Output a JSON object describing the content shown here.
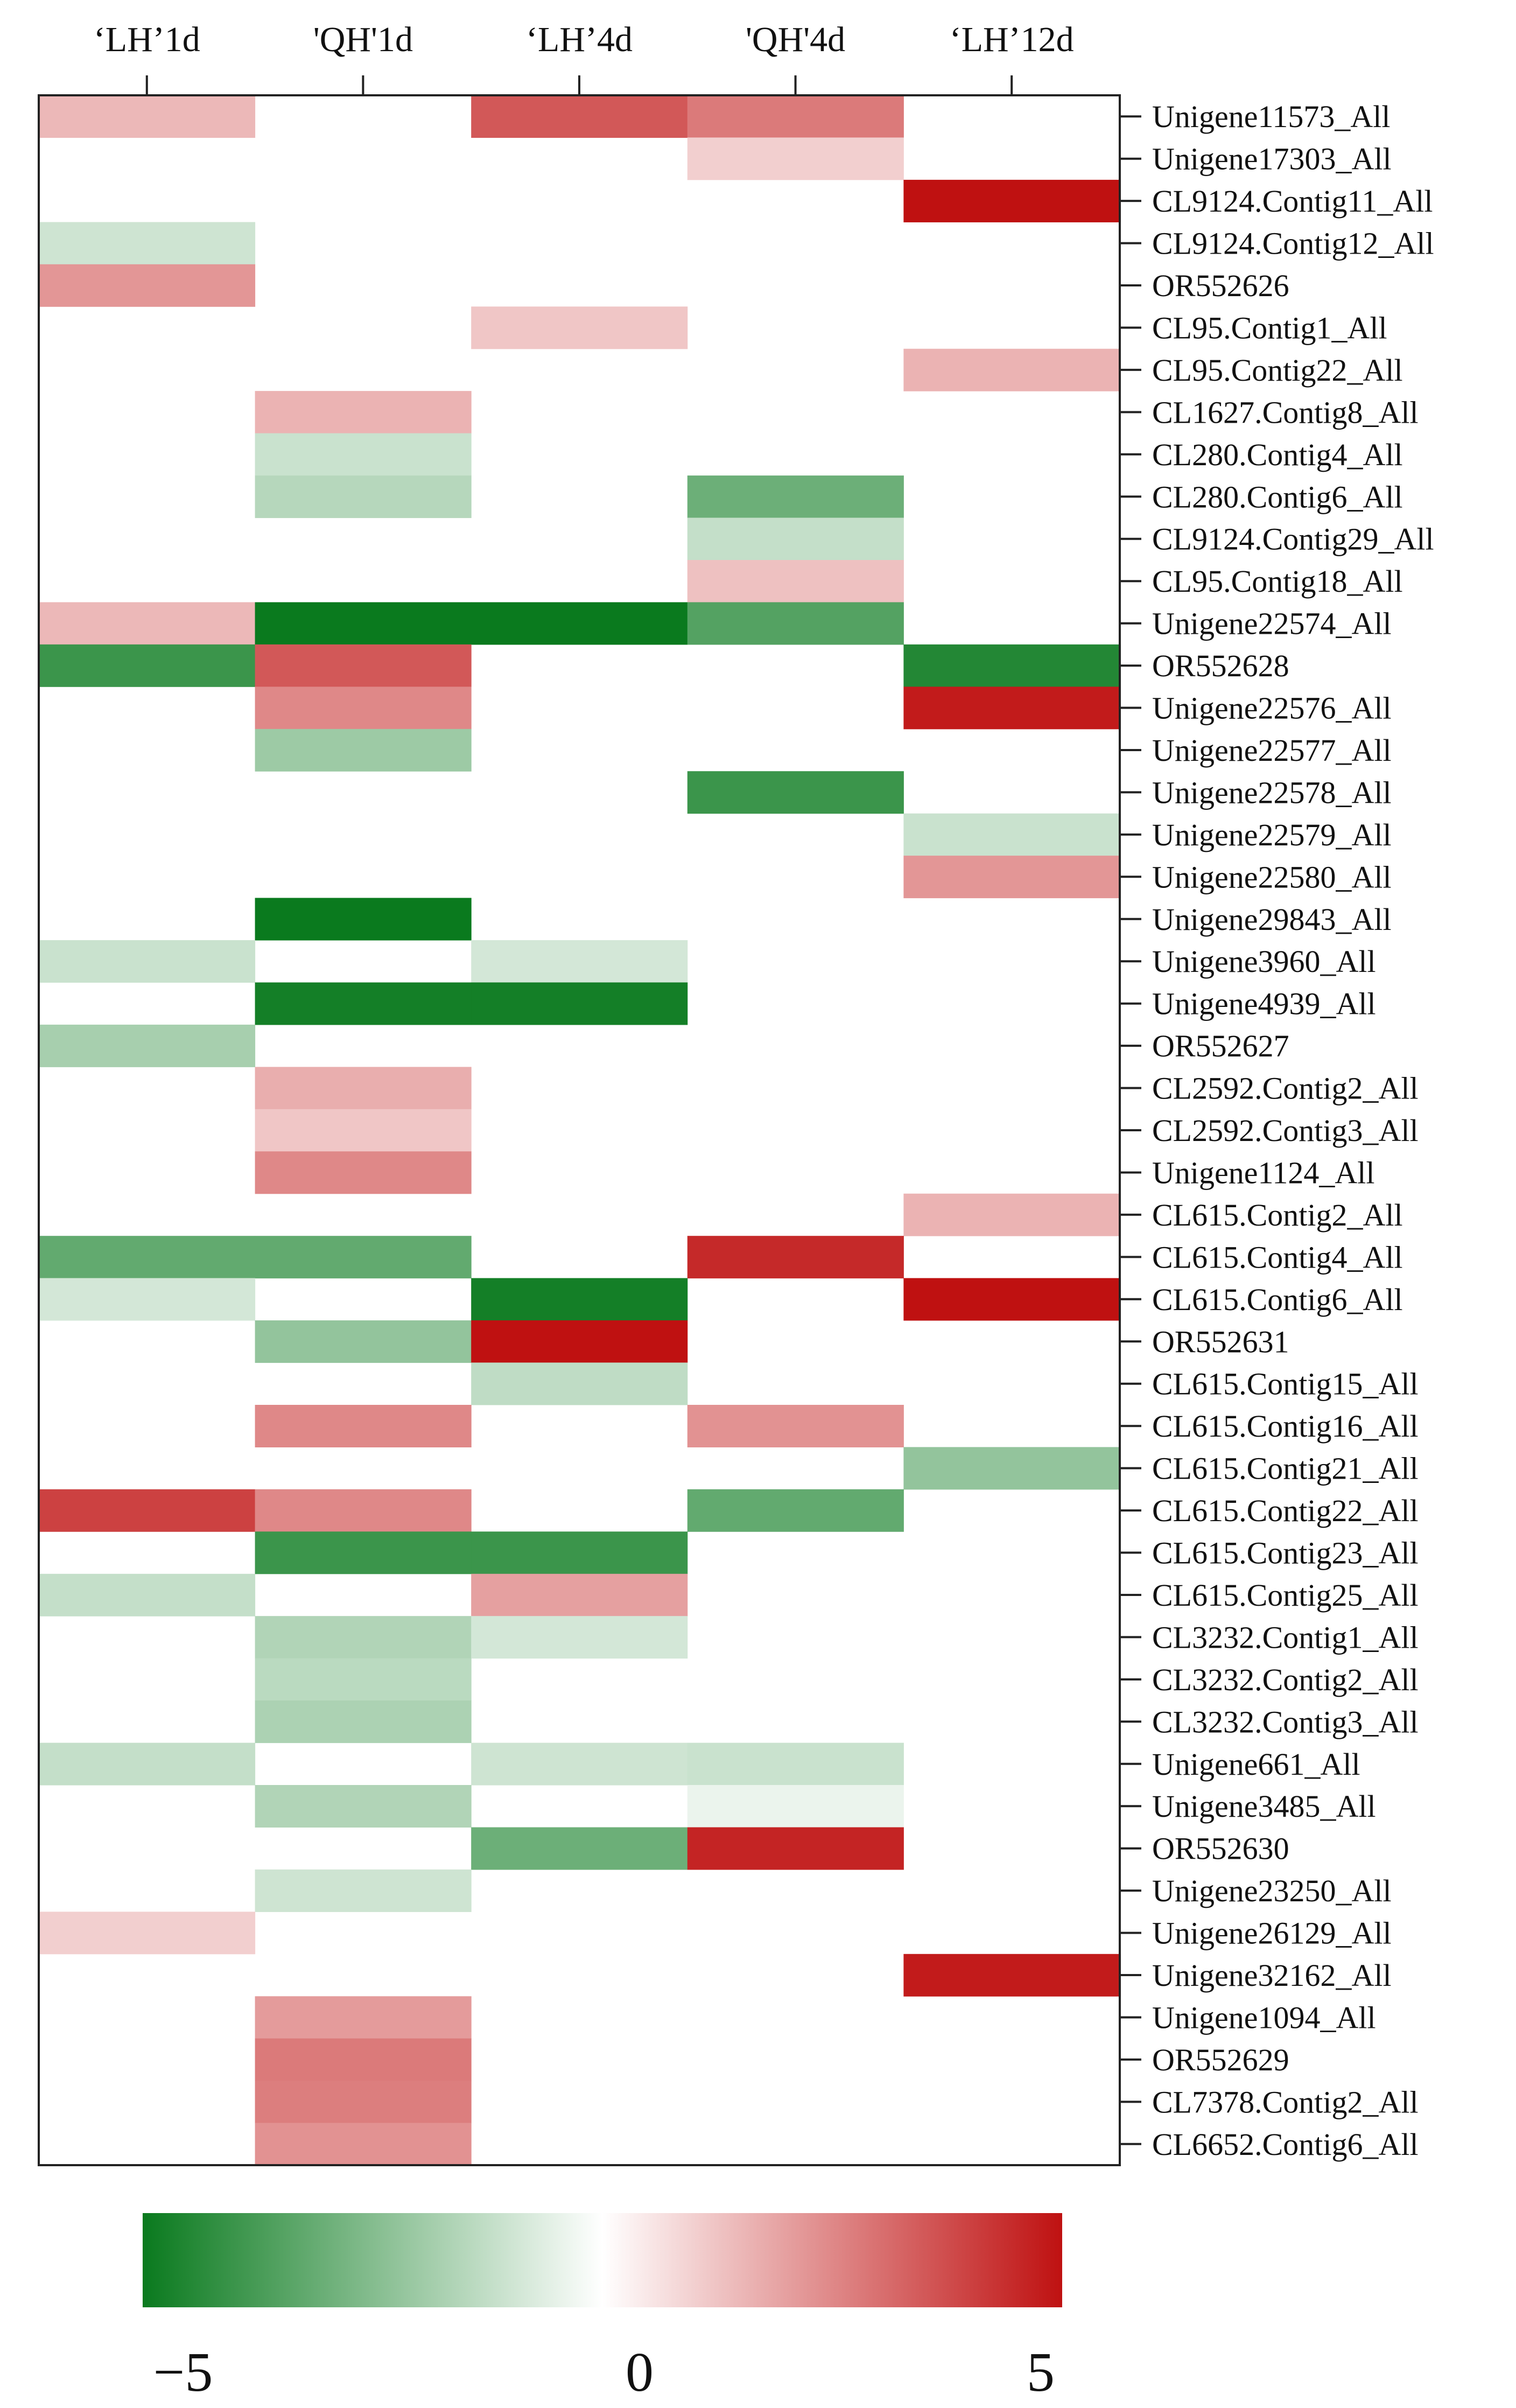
{
  "chart_data": {
    "type": "heatmap",
    "columns": [
      "‘LH’1d",
      "'QH'1d",
      "‘LH’4d",
      "'QH'4d",
      "‘LH’12d"
    ],
    "rows": [
      "Unigene11573_All",
      "Unigene17303_All",
      "CL9124.Contig11_All",
      "CL9124.Contig12_All",
      "OR552626",
      "CL95.Contig1_All",
      "CL95.Contig22_All",
      "CL1627.Contig8_All",
      "CL280.Contig4_All",
      "CL280.Contig6_All",
      "CL9124.Contig29_All",
      "CL95.Contig18_All",
      "Unigene22574_All",
      "OR552628",
      "Unigene22576_All",
      "Unigene22577_All",
      "Unigene22578_All",
      "Unigene22579_All",
      "Unigene22580_All",
      "Unigene29843_All",
      "Unigene3960_All",
      "Unigene4939_All",
      "OR552627",
      "CL2592.Contig2_All",
      "CL2592.Contig3_All",
      "Unigene1124_All",
      "CL615.Contig2_All",
      "CL615.Contig4_All",
      "CL615.Contig6_All",
      "OR552631",
      "CL615.Contig15_All",
      "CL615.Contig16_All",
      "CL615.Contig21_All",
      "CL615.Contig22_All",
      "CL615.Contig23_All",
      "CL615.Contig25_All",
      "CL3232.Contig1_All",
      "CL3232.Contig2_All",
      "CL3232.Contig3_All",
      "Unigene661_All",
      "Unigene3485_All",
      "OR552630",
      "Unigene23250_All",
      "Unigene26129_All",
      "Unigene32162_All",
      "Unigene1094_All",
      "OR552629",
      "CL7378.Contig2_All",
      "CL6652.Contig6_All"
    ],
    "values": [
      [
        1.5,
        null,
        3.5,
        2.8,
        null
      ],
      [
        null,
        null,
        null,
        1.0,
        null
      ],
      [
        null,
        null,
        null,
        null,
        5.0
      ],
      [
        -1.0,
        null,
        null,
        null,
        null
      ],
      [
        2.2,
        null,
        null,
        null,
        null
      ],
      [
        null,
        null,
        1.2,
        null,
        null
      ],
      [
        null,
        null,
        null,
        null,
        1.6
      ],
      [
        null,
        1.6,
        null,
        null,
        null
      ],
      [
        null,
        -1.1,
        null,
        null,
        null
      ],
      [
        null,
        -1.5,
        null,
        -3.0,
        null
      ],
      [
        null,
        null,
        null,
        -1.2,
        null
      ],
      [
        null,
        null,
        null,
        1.3,
        null
      ],
      [
        1.5,
        -5.0,
        -5.0,
        -3.5,
        null
      ],
      [
        -4.0,
        3.5,
        null,
        null,
        -4.5
      ],
      [
        null,
        2.5,
        null,
        null,
        4.8
      ],
      [
        null,
        -2.0,
        null,
        null,
        null
      ],
      [
        null,
        null,
        null,
        -4.0,
        null
      ],
      [
        null,
        null,
        null,
        null,
        -1.1
      ],
      [
        null,
        null,
        null,
        null,
        2.2
      ],
      [
        null,
        -5.0,
        null,
        null,
        null
      ],
      [
        -1.1,
        null,
        -0.9,
        null,
        null
      ],
      [
        null,
        -4.8,
        -4.8,
        null,
        null
      ],
      [
        -1.8,
        null,
        null,
        null,
        null
      ],
      [
        null,
        1.7,
        null,
        null,
        null
      ],
      [
        null,
        1.2,
        null,
        null,
        null
      ],
      [
        null,
        2.5,
        null,
        null,
        null
      ],
      [
        null,
        null,
        null,
        null,
        1.6
      ],
      [
        -3.2,
        -3.2,
        null,
        4.5,
        null
      ],
      [
        -0.9,
        null,
        -4.8,
        null,
        5.0
      ],
      [
        null,
        -2.2,
        5.0,
        null,
        null
      ],
      [
        null,
        null,
        -1.3,
        null,
        null
      ],
      [
        null,
        2.5,
        null,
        2.3,
        null
      ],
      [
        null,
        null,
        null,
        null,
        -2.2
      ],
      [
        4.0,
        2.5,
        null,
        -3.2,
        null
      ],
      [
        null,
        -4.0,
        -4.0,
        null,
        null
      ],
      [
        -1.2,
        null,
        2.0,
        null,
        null
      ],
      [
        null,
        -1.6,
        -0.9,
        null,
        null
      ],
      [
        null,
        -1.4,
        null,
        null,
        null
      ],
      [
        null,
        -1.7,
        null,
        null,
        null
      ],
      [
        -1.2,
        null,
        -1.0,
        -1.1,
        null
      ],
      [
        null,
        -1.6,
        null,
        -0.4,
        null
      ],
      [
        null,
        null,
        -3.0,
        4.6,
        null
      ],
      [
        null,
        -1.0,
        null,
        null,
        null
      ],
      [
        1.0,
        null,
        null,
        null,
        null
      ],
      [
        null,
        null,
        null,
        null,
        4.8
      ],
      [
        null,
        2.1,
        null,
        null,
        null
      ],
      [
        null,
        2.8,
        null,
        null,
        null
      ],
      [
        null,
        2.7,
        null,
        null,
        null
      ],
      [
        null,
        2.3,
        null,
        null,
        null
      ]
    ],
    "colorbar": {
      "min": -5,
      "max": 5,
      "ticks": [
        "−5",
        "0",
        "5"
      ],
      "low_color": "#0a7a1e",
      "mid_color": "#ffffff",
      "high_color": "#bf1111"
    }
  }
}
